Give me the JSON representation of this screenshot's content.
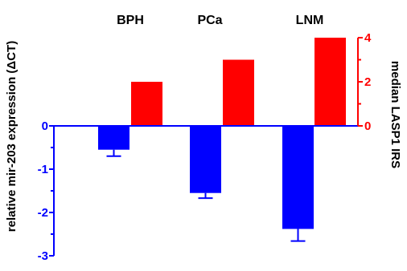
{
  "chart_data": {
    "type": "bar",
    "categories": [
      "BPH",
      "PCa",
      "LNM"
    ],
    "series": [
      {
        "name": "relative mir-203 expression (ΔCT)",
        "axis": "left",
        "color": "#0000ff",
        "values": [
          -0.55,
          -1.55,
          -2.38
        ],
        "errors": [
          0.15,
          0.12,
          0.28
        ]
      },
      {
        "name": "median LASP1 IRS",
        "axis": "right",
        "color": "#ff0000",
        "values": [
          2,
          3,
          4
        ]
      }
    ],
    "left_axis": {
      "label": "relative mir-203 expression (ΔCT)",
      "ylim": [
        -3,
        0
      ],
      "ticks": [
        "0",
        "-1",
        "-2",
        "-3"
      ],
      "color": "#0000ff"
    },
    "right_axis": {
      "label": "median LASP1 IRS",
      "ylim": [
        0,
        4
      ],
      "ticks": [
        "0",
        "2",
        "4"
      ],
      "color": "#ff0000"
    },
    "grid": false,
    "legend": "none"
  }
}
